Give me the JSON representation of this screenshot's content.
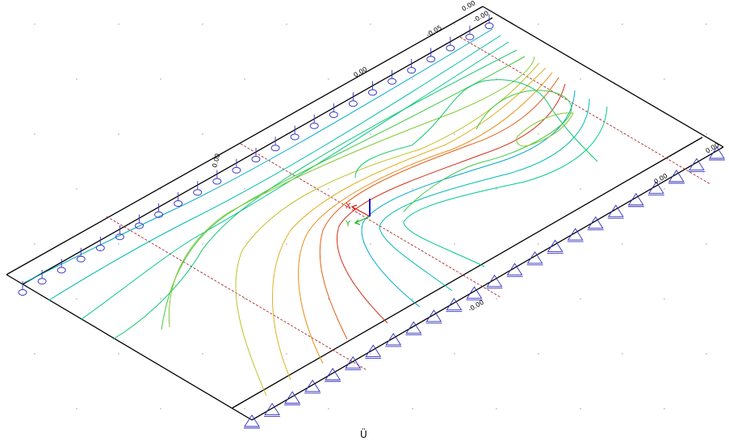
{
  "labels": {
    "axis_x": "X",
    "axis_y": "Y",
    "bottom_mark": "Ü",
    "contour_top_right_1": "0.00",
    "contour_top_right_2": "-0.05",
    "contour_top_right_3": "-0.00",
    "contour_left_edge": "0.00",
    "contour_mid_edge": "0.00",
    "contour_right_edge_1": "0.00",
    "contour_right_edge_2": "0.00",
    "contour_right_edge_3": "-0.00"
  },
  "colors": {
    "background": "#ffffff",
    "slab_edge": "#000000",
    "grid_line": "#a01010",
    "support": "#3030c0",
    "axis_x": "#e01818",
    "axis_y": "#18b818",
    "axis_z": "#1010d0",
    "contour_palette": [
      "#00a8c8",
      "#00bcb0",
      "#00c890",
      "#10c870",
      "#40c840",
      "#80c830",
      "#c0c028",
      "#e0b020",
      "#e89018",
      "#e06018",
      "#d03018"
    ]
  }
}
